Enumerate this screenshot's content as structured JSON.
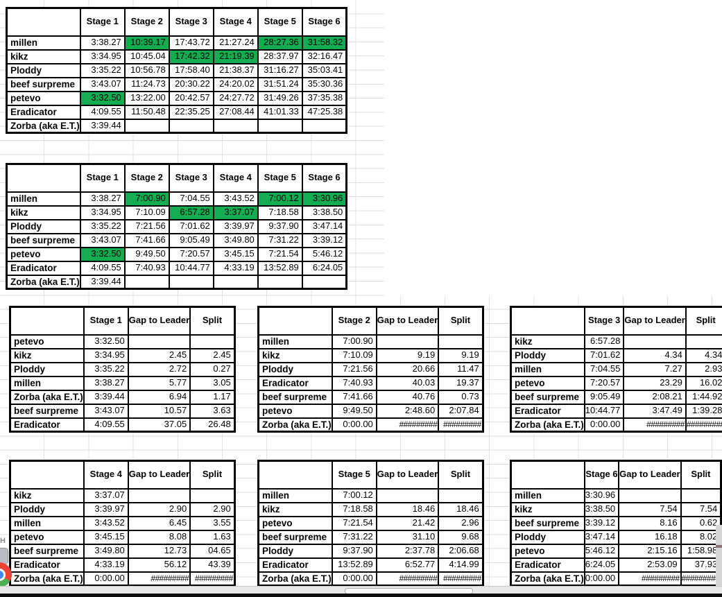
{
  "colors": {
    "best_green": "#12AD50",
    "grid": "#dcdcdc",
    "table_border": "#000000",
    "taskbar": "#0d0d0d"
  },
  "icons": {
    "bottom_left": "chrome-icon-fragment",
    "edge_letter": "H"
  },
  "cumulative_table": {
    "corner": "",
    "columns": [
      "Stage 1",
      "Stage 2",
      "Stage 3",
      "Stage 4",
      "Stage 5",
      "Stage 6"
    ],
    "rows": [
      {
        "name": "millen",
        "values": [
          "3:38.27",
          "10:39.17",
          "17:43.72",
          "21:27.24",
          "28:27.36",
          "31:58.32"
        ],
        "green": [
          1,
          4,
          5
        ]
      },
      {
        "name": "kikz",
        "values": [
          "3:34.95",
          "10:45.04",
          "17:42.32",
          "21:19.39",
          "28:37.97",
          "32:16.47"
        ],
        "green": [
          2,
          3
        ]
      },
      {
        "name": "Ploddy",
        "values": [
          "3:35.22",
          "10:56.78",
          "17:58.40",
          "21:38.37",
          "31:16.27",
          "35:03.41"
        ],
        "green": []
      },
      {
        "name": "beef surpreme",
        "values": [
          "3:43.07",
          "11:24.73",
          "20:30.22",
          "24:20.02",
          "31:51.24",
          "35:30.36"
        ],
        "green": []
      },
      {
        "name": "petevo",
        "values": [
          "3:32.50",
          "13:22.00",
          "20:42.57",
          "24:27.72",
          "31:49.26",
          "37:35.38"
        ],
        "green": [
          0
        ]
      },
      {
        "name": "Eradicator",
        "values": [
          "4:09.55",
          "11:50.48",
          "22:35.25",
          "27:08.44",
          "41:01.33",
          "47:25.38"
        ],
        "green": []
      },
      {
        "name": "Zorba (aka E.T.)",
        "values": [
          "3:39.44",
          "",
          "",
          "",
          "",
          ""
        ],
        "green": []
      }
    ]
  },
  "stage_times_table": {
    "corner": "",
    "columns": [
      "Stage 1",
      "Stage 2",
      "Stage 3",
      "Stage 4",
      "Stage 5",
      "Stage 6"
    ],
    "rows": [
      {
        "name": "millen",
        "values": [
          "3:38.27",
          "7:00.90",
          "7:04.55",
          "3:43.52",
          "7:00.12",
          "3:30.96"
        ],
        "green": [
          1,
          4,
          5
        ]
      },
      {
        "name": "kikz",
        "values": [
          "3:34.95",
          "7:10.09",
          "6:57.28",
          "3:37.07",
          "7:18.58",
          "3:38.50"
        ],
        "green": [
          2,
          3
        ]
      },
      {
        "name": "Ploddy",
        "values": [
          "3:35.22",
          "7:21.56",
          "7:01.62",
          "3:39.97",
          "9:37.90",
          "3:47.14"
        ],
        "green": []
      },
      {
        "name": "beef surpreme",
        "values": [
          "3:43.07",
          "7:41.66",
          "9:05.49",
          "3:49.80",
          "7:31.22",
          "3:39.12"
        ],
        "green": []
      },
      {
        "name": "petevo",
        "values": [
          "3:32.50",
          "9:49.50",
          "7:20.57",
          "3:45.15",
          "7:21.54",
          "5:46.12"
        ],
        "green": [
          0
        ]
      },
      {
        "name": "Eradicator",
        "values": [
          "4:09.55",
          "7:40.93",
          "10:44.77",
          "4:33.19",
          "13:52.89",
          "6:24.05"
        ],
        "green": []
      },
      {
        "name": "Zorba (aka E.T.)",
        "values": [
          "3:39.44",
          "",
          "",
          "",
          "",
          ""
        ],
        "green": []
      }
    ]
  },
  "ranking_tables": [
    {
      "stage": "Stage 1",
      "gap_label": "Gap to Leader",
      "split_label": "Split",
      "rows": [
        [
          "petevo",
          "3:32.50",
          "",
          ""
        ],
        [
          "kikz",
          "3:34.95",
          "2.45",
          "2.45"
        ],
        [
          "Ploddy",
          "3:35.22",
          "2.72",
          "0.27"
        ],
        [
          "millen",
          "3:38.27",
          "5.77",
          "3.05"
        ],
        [
          "Zorba (aka E.T.)",
          "3:39.44",
          "6.94",
          "1.17"
        ],
        [
          "beef surpreme",
          "3:43.07",
          "10.57",
          "3.63"
        ],
        [
          "Eradicator",
          "4:09.55",
          "37.05",
          "26.48"
        ]
      ]
    },
    {
      "stage": "Stage 2",
      "gap_label": "Gap to Leader",
      "split_label": "Split",
      "rows": [
        [
          "millen",
          "7:00.90",
          "",
          ""
        ],
        [
          "kikz",
          "7:10.09",
          "9.19",
          "9.19"
        ],
        [
          "Ploddy",
          "7:21.56",
          "20.66",
          "11.47"
        ],
        [
          "Eradicator",
          "7:40.93",
          "40.03",
          "19.37"
        ],
        [
          "beef surpreme",
          "7:41.66",
          "40.76",
          "0.73"
        ],
        [
          "petevo",
          "9:49.50",
          "2:48.60",
          "2:07.84"
        ],
        [
          "Zorba (aka E.T.)",
          "0:00.00",
          "#########",
          "#########"
        ]
      ]
    },
    {
      "stage": "Stage 3",
      "gap_label": "Gap to Leader",
      "split_label": "Split",
      "rows": [
        [
          "kikz",
          "6:57.28",
          "",
          ""
        ],
        [
          "Ploddy",
          "7:01.62",
          "4.34",
          "4.34"
        ],
        [
          "millen",
          "7:04.55",
          "7.27",
          "2.93"
        ],
        [
          "petevo",
          "7:20.57",
          "23.29",
          "16.02"
        ],
        [
          "beef surpreme",
          "9:05.49",
          "2:08.21",
          "1:44.92"
        ],
        [
          "Eradicator",
          "10:44.77",
          "3:47.49",
          "1:39.28"
        ],
        [
          "Zorba (aka E.T.)",
          "0:00.00",
          "#########",
          "#########"
        ]
      ]
    },
    {
      "stage": "Stage 4",
      "gap_label": "Gap to Leader",
      "split_label": "Split",
      "rows": [
        [
          "kikz",
          "3:37.07",
          "",
          ""
        ],
        [
          "Ploddy",
          "3:39.97",
          "2.90",
          "2.90"
        ],
        [
          "millen",
          "3:43.52",
          "6.45",
          "3.55"
        ],
        [
          "petevo",
          "3:45.15",
          "8.08",
          "1.63"
        ],
        [
          "beef surpreme",
          "3:49.80",
          "12.73",
          "04.65"
        ],
        [
          "Eradicator",
          "4:33.19",
          "56.12",
          "43.39"
        ],
        [
          "Zorba (aka E.T.)",
          "0:00.00",
          "#########",
          "#########"
        ]
      ]
    },
    {
      "stage": "Stage 5",
      "gap_label": "Gap to Leader",
      "split_label": "Split",
      "rows": [
        [
          "millen",
          "7:00.12",
          "",
          ""
        ],
        [
          "kikz",
          "7:18.58",
          "18.46",
          "18.46"
        ],
        [
          "petevo",
          "7:21.54",
          "21.42",
          "2.96"
        ],
        [
          "beef surpreme",
          "7:31.22",
          "31.10",
          "9.68"
        ],
        [
          "Ploddy",
          "9:37.90",
          "2:37.78",
          "2:06.68"
        ],
        [
          "Eradicator",
          "13:52.89",
          "6:52.77",
          "4:14.99"
        ],
        [
          "Zorba (aka E.T.)",
          "0:00.00",
          "#########",
          "#########"
        ]
      ]
    },
    {
      "stage": "Stage 6",
      "gap_label": "Gap to Leader",
      "split_label": "Split",
      "rows": [
        [
          "millen",
          "3:30.96",
          "",
          ""
        ],
        [
          "kikz",
          "3:38.50",
          "7.54",
          "7.54"
        ],
        [
          "beef surpreme",
          "3:39.12",
          "8.16",
          "0.62"
        ],
        [
          "Ploddy",
          "3:47.14",
          "16.18",
          "8.02"
        ],
        [
          "petevo",
          "5:46.12",
          "2:15.16",
          "1:58.98"
        ],
        [
          "Eradicator",
          "6:24.05",
          "2:53.09",
          "37.93"
        ],
        [
          "Zorba (aka E.T.)",
          "0:00.00",
          "#########",
          "#########"
        ]
      ]
    }
  ]
}
